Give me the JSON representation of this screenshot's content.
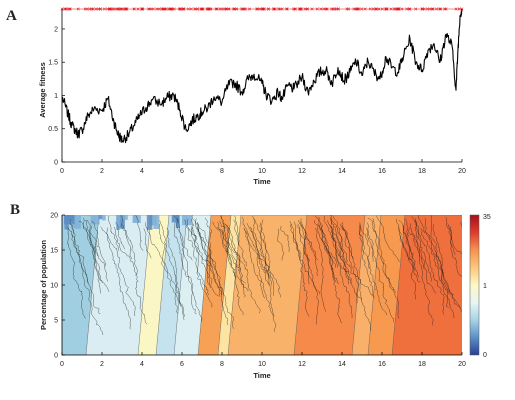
{
  "chart_data": [
    {
      "panel": "A",
      "type": "line",
      "xlabel": "Time",
      "ylabel": "Average fitness",
      "xlim": [
        0,
        20
      ],
      "ylim": [
        0,
        2.3
      ],
      "xticks": [
        0,
        2,
        4,
        6,
        8,
        10,
        12,
        14,
        16,
        18,
        20
      ],
      "yticks": [
        0,
        0.5,
        1,
        1.5,
        2
      ],
      "grid": false,
      "line_color": "#000000",
      "marker_color": "#e8141c",
      "marker_level": 2.3,
      "series": [
        {
          "x": [
            0,
            0.3,
            0.5,
            0.8,
            1.0,
            1.3,
            1.6,
            2.0,
            2.3,
            2.6,
            2.8,
            3.0,
            3.3,
            3.6,
            3.9,
            4.2,
            4.5,
            5.0,
            5.3,
            5.6,
            5.9,
            6.2,
            6.5,
            6.8,
            7.0,
            7.3,
            7.6,
            8.0,
            8.3,
            8.6,
            9.0,
            9.3,
            9.6,
            10.0,
            10.2,
            10.5,
            10.8,
            11.0,
            11.3,
            11.6,
            12.0,
            12.3,
            12.6,
            12.9,
            13.2,
            13.5,
            13.8,
            14.1,
            14.4,
            14.7,
            15.0,
            15.3,
            15.6,
            15.9,
            16.2,
            16.5,
            16.8,
            17.1,
            17.4,
            17.7,
            18.0,
            18.3,
            18.6,
            18.9,
            19.2,
            19.5,
            19.7,
            19.8,
            19.9,
            20.0
          ],
          "y": [
            0.98,
            0.72,
            0.55,
            0.42,
            0.48,
            0.7,
            0.8,
            0.78,
            0.95,
            0.6,
            0.42,
            0.33,
            0.4,
            0.55,
            0.7,
            0.82,
            0.93,
            0.88,
            0.98,
            1.0,
            0.78,
            0.48,
            0.62,
            0.7,
            0.75,
            0.82,
            0.98,
            0.9,
            1.15,
            1.2,
            1.05,
            1.25,
            1.32,
            1.18,
            1.02,
            0.92,
            1.05,
            0.95,
            1.15,
            1.1,
            1.28,
            1.05,
            1.22,
            1.35,
            1.38,
            1.18,
            1.42,
            1.22,
            1.35,
            1.52,
            1.3,
            1.52,
            1.35,
            1.25,
            1.58,
            1.42,
            1.35,
            1.62,
            1.85,
            1.5,
            1.38,
            1.68,
            1.78,
            1.5,
            1.92,
            1.75,
            1.08,
            1.7,
            2.2,
            2.3
          ]
        }
      ]
    },
    {
      "panel": "B",
      "type": "area",
      "xlabel": "Time",
      "ylabel": "Percentage of population",
      "xlim": [
        0,
        20
      ],
      "ylim": [
        0,
        20
      ],
      "xticks": [
        0,
        2,
        4,
        6,
        8,
        10,
        12,
        14,
        16,
        18,
        20
      ],
      "yticks": [
        0,
        5,
        10,
        15,
        20
      ],
      "colorbar": {
        "ticks": [
          "0",
          "1",
          "35"
        ],
        "colors": [
          "#2b3f93",
          "#5a91c6",
          "#a8d3e6",
          "#e9f5f4",
          "#fdf8c7",
          "#fbc77b",
          "#f5924f",
          "#dc3d2c",
          "#a6101e"
        ]
      },
      "clones": [
        {
          "t0": 0.0,
          "t1": 1.7,
          "color": "#9fcfe0"
        },
        {
          "t0": 1.7,
          "t1": 4.3,
          "color": "#daedf2"
        },
        {
          "t0": 4.3,
          "t1": 5.2,
          "color": "#fbf7c4"
        },
        {
          "t0": 5.2,
          "t1": 6.1,
          "color": "#c4e3ee"
        },
        {
          "t0": 6.1,
          "t1": 7.3,
          "color": "#dcf0f3"
        },
        {
          "t0": 7.3,
          "t1": 8.3,
          "color": "#f7a157"
        },
        {
          "t0": 8.3,
          "t1": 8.8,
          "color": "#fde4a2"
        },
        {
          "t0": 8.8,
          "t1": 12.1,
          "color": "#f9b26a"
        },
        {
          "t0": 12.1,
          "t1": 15.0,
          "color": "#f58a4b"
        },
        {
          "t0": 15.0,
          "t1": 15.8,
          "color": "#f9b06a"
        },
        {
          "t0": 15.8,
          "t1": 17.0,
          "color": "#f7994f"
        },
        {
          "t0": 17.0,
          "t1": 20.0,
          "color": "#ef6f3d"
        }
      ]
    }
  ],
  "labels": {
    "panel_a": "A",
    "panel_b": "B"
  }
}
